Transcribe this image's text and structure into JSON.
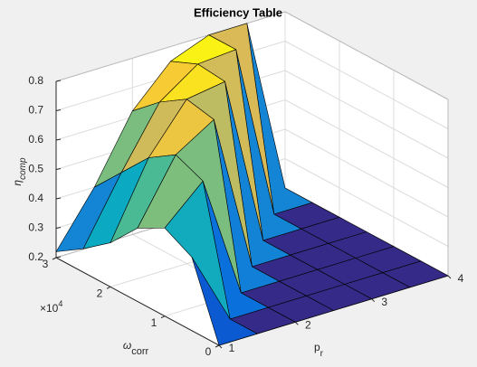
{
  "chart_data": {
    "type": "surface",
    "title": "Efficiency Table",
    "x_label": "p",
    "x_label_sub": "r",
    "y_label": "ω",
    "y_label_sub": "corr",
    "z_label": "η",
    "z_label_sub": "comp",
    "y_exponent": {
      "base": "×10",
      "power": "4"
    },
    "x": [
      1,
      1.5,
      2,
      2.5,
      3,
      3.5,
      4
    ],
    "y": [
      0,
      0.5,
      1,
      1.5,
      2,
      2.5,
      3
    ],
    "z": [
      [
        0.2,
        0.2,
        0.2,
        0.2,
        0.2,
        0.2,
        0.2
      ],
      [
        0.45,
        0.2,
        0.2,
        0.2,
        0.2,
        0.2,
        0.2
      ],
      [
        0.5,
        0.62,
        0.2,
        0.2,
        0.2,
        0.2,
        0.2
      ],
      [
        0.45,
        0.66,
        0.74,
        0.2,
        0.2,
        0.2,
        0.2
      ],
      [
        0.35,
        0.6,
        0.76,
        0.78,
        0.2,
        0.2,
        0.2
      ],
      [
        0.28,
        0.5,
        0.7,
        0.79,
        0.8,
        0.2,
        0.2
      ],
      [
        0.22,
        0.4,
        0.62,
        0.75,
        0.8,
        0.8,
        0.2
      ]
    ],
    "xlim": [
      1,
      4
    ],
    "xticks": [
      1,
      2,
      3,
      4
    ],
    "ylim": [
      0,
      3
    ],
    "yticks": [
      0,
      1,
      2,
      3
    ],
    "zlim": [
      0.2,
      0.8
    ],
    "zticks": [
      0.2,
      0.3,
      0.4,
      0.5,
      0.6,
      0.7,
      0.8
    ],
    "grid": true,
    "colormap": "parula"
  }
}
